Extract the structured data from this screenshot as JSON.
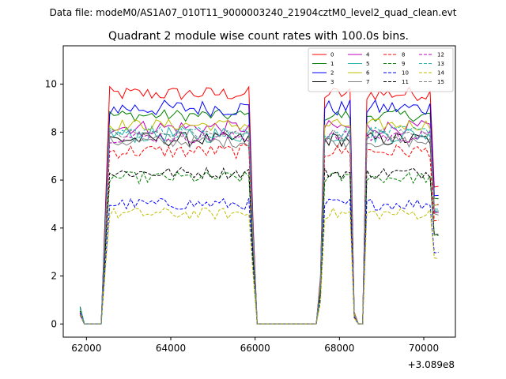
{
  "figure": {
    "suptitle": "Data file: modeM0/AS1A07_010T11_9000003240_21904cztM0_level2_quad_clean.evt",
    "title": "Quadrant 2 module wise count rates with 100.0s bins.",
    "offset_label": "+3.089e8"
  },
  "chart_data": {
    "type": "line",
    "title": "Quadrant 2 module wise count rates with 100.0s bins.",
    "xlabel": "",
    "ylabel": "",
    "x_offset": 308900000,
    "xlim": [
      61450,
      70750
    ],
    "ylim": [
      -0.55,
      11.6
    ],
    "xticks": [
      62000,
      64000,
      66000,
      68000,
      70000
    ],
    "xtick_labels": [
      "62000",
      "64000",
      "66000",
      "68000",
      "70000"
    ],
    "yticks": [
      0,
      2,
      4,
      6,
      8,
      10
    ],
    "ytick_labels": [
      "0",
      "2",
      "4",
      "6",
      "8",
      "10"
    ],
    "legend_position": "top-right",
    "segments": [
      {
        "start": 61850,
        "end": 66300
      },
      {
        "start": 67450,
        "end": 70350
      }
    ],
    "series": [
      {
        "name": "0",
        "color": "#ff0000",
        "dash": "solid",
        "level": 9.6,
        "jitter": 0.3
      },
      {
        "name": "1",
        "color": "#008000",
        "dash": "solid",
        "level": 8.7,
        "jitter": 0.25
      },
      {
        "name": "2",
        "color": "#0000ff",
        "dash": "solid",
        "level": 9.0,
        "jitter": 0.35
      },
      {
        "name": "3",
        "color": "#000000",
        "dash": "solid",
        "level": 7.7,
        "jitter": 0.3
      },
      {
        "name": "4",
        "color": "#bf00bf",
        "dash": "solid",
        "level": 8.2,
        "jitter": 0.3
      },
      {
        "name": "5",
        "color": "#20b2aa",
        "dash": "solid",
        "level": 7.9,
        "jitter": 0.35
      },
      {
        "name": "6",
        "color": "#bfbf00",
        "dash": "solid",
        "level": 8.3,
        "jitter": 0.25
      },
      {
        "name": "7",
        "color": "#808080",
        "dash": "solid",
        "level": 7.6,
        "jitter": 0.25
      },
      {
        "name": "8",
        "color": "#ff0000",
        "dash": "dashed",
        "level": 7.2,
        "jitter": 0.3
      },
      {
        "name": "9",
        "color": "#008000",
        "dash": "dashed",
        "level": 6.1,
        "jitter": 0.25
      },
      {
        "name": "10",
        "color": "#0000ff",
        "dash": "dashed",
        "level": 5.0,
        "jitter": 0.25
      },
      {
        "name": "11",
        "color": "#000000",
        "dash": "dashed",
        "level": 6.3,
        "jitter": 0.25
      },
      {
        "name": "12",
        "color": "#bf00bf",
        "dash": "dashed",
        "level": 7.8,
        "jitter": 0.25
      },
      {
        "name": "13",
        "color": "#20b2aa",
        "dash": "dashed",
        "level": 8.0,
        "jitter": 0.25
      },
      {
        "name": "14",
        "color": "#bfbf00",
        "dash": "dashed",
        "level": 4.6,
        "jitter": 0.25
      },
      {
        "name": "15",
        "color": "#808080",
        "dash": "dashed",
        "level": 7.9,
        "jitter": 0.25
      }
    ]
  }
}
